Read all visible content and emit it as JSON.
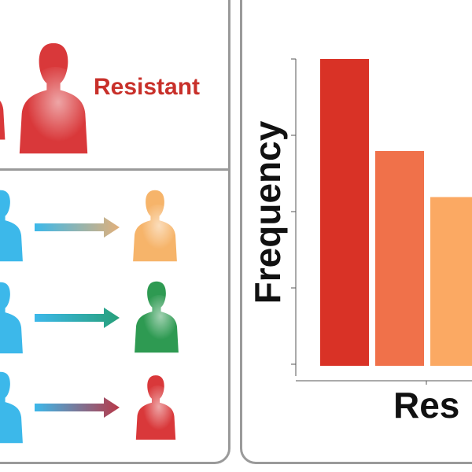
{
  "left_panel": {
    "top": {
      "label": "Resistant",
      "figure_color": "#d9383a"
    },
    "rows": [
      {
        "source_color": "#3cb8ea",
        "arrow_end": "#e2b07a",
        "target_color": "#f6b46a"
      },
      {
        "source_color": "#3cb8ea",
        "arrow_end": "#27a07a",
        "target_color": "#2e9a52"
      },
      {
        "source_color": "#3cb8ea",
        "arrow_end": "#b83848",
        "target_color": "#d9383a"
      }
    ]
  },
  "chart_data": {
    "type": "bar",
    "xlabel": "Res",
    "ylabel": "Frequency",
    "categories": [
      "",
      "",
      ""
    ],
    "values": [
      100,
      70,
      55
    ],
    "ylim": [
      0,
      100
    ],
    "colors": [
      "#d93226",
      "#f0714a",
      "#fba963"
    ],
    "grid": false
  }
}
